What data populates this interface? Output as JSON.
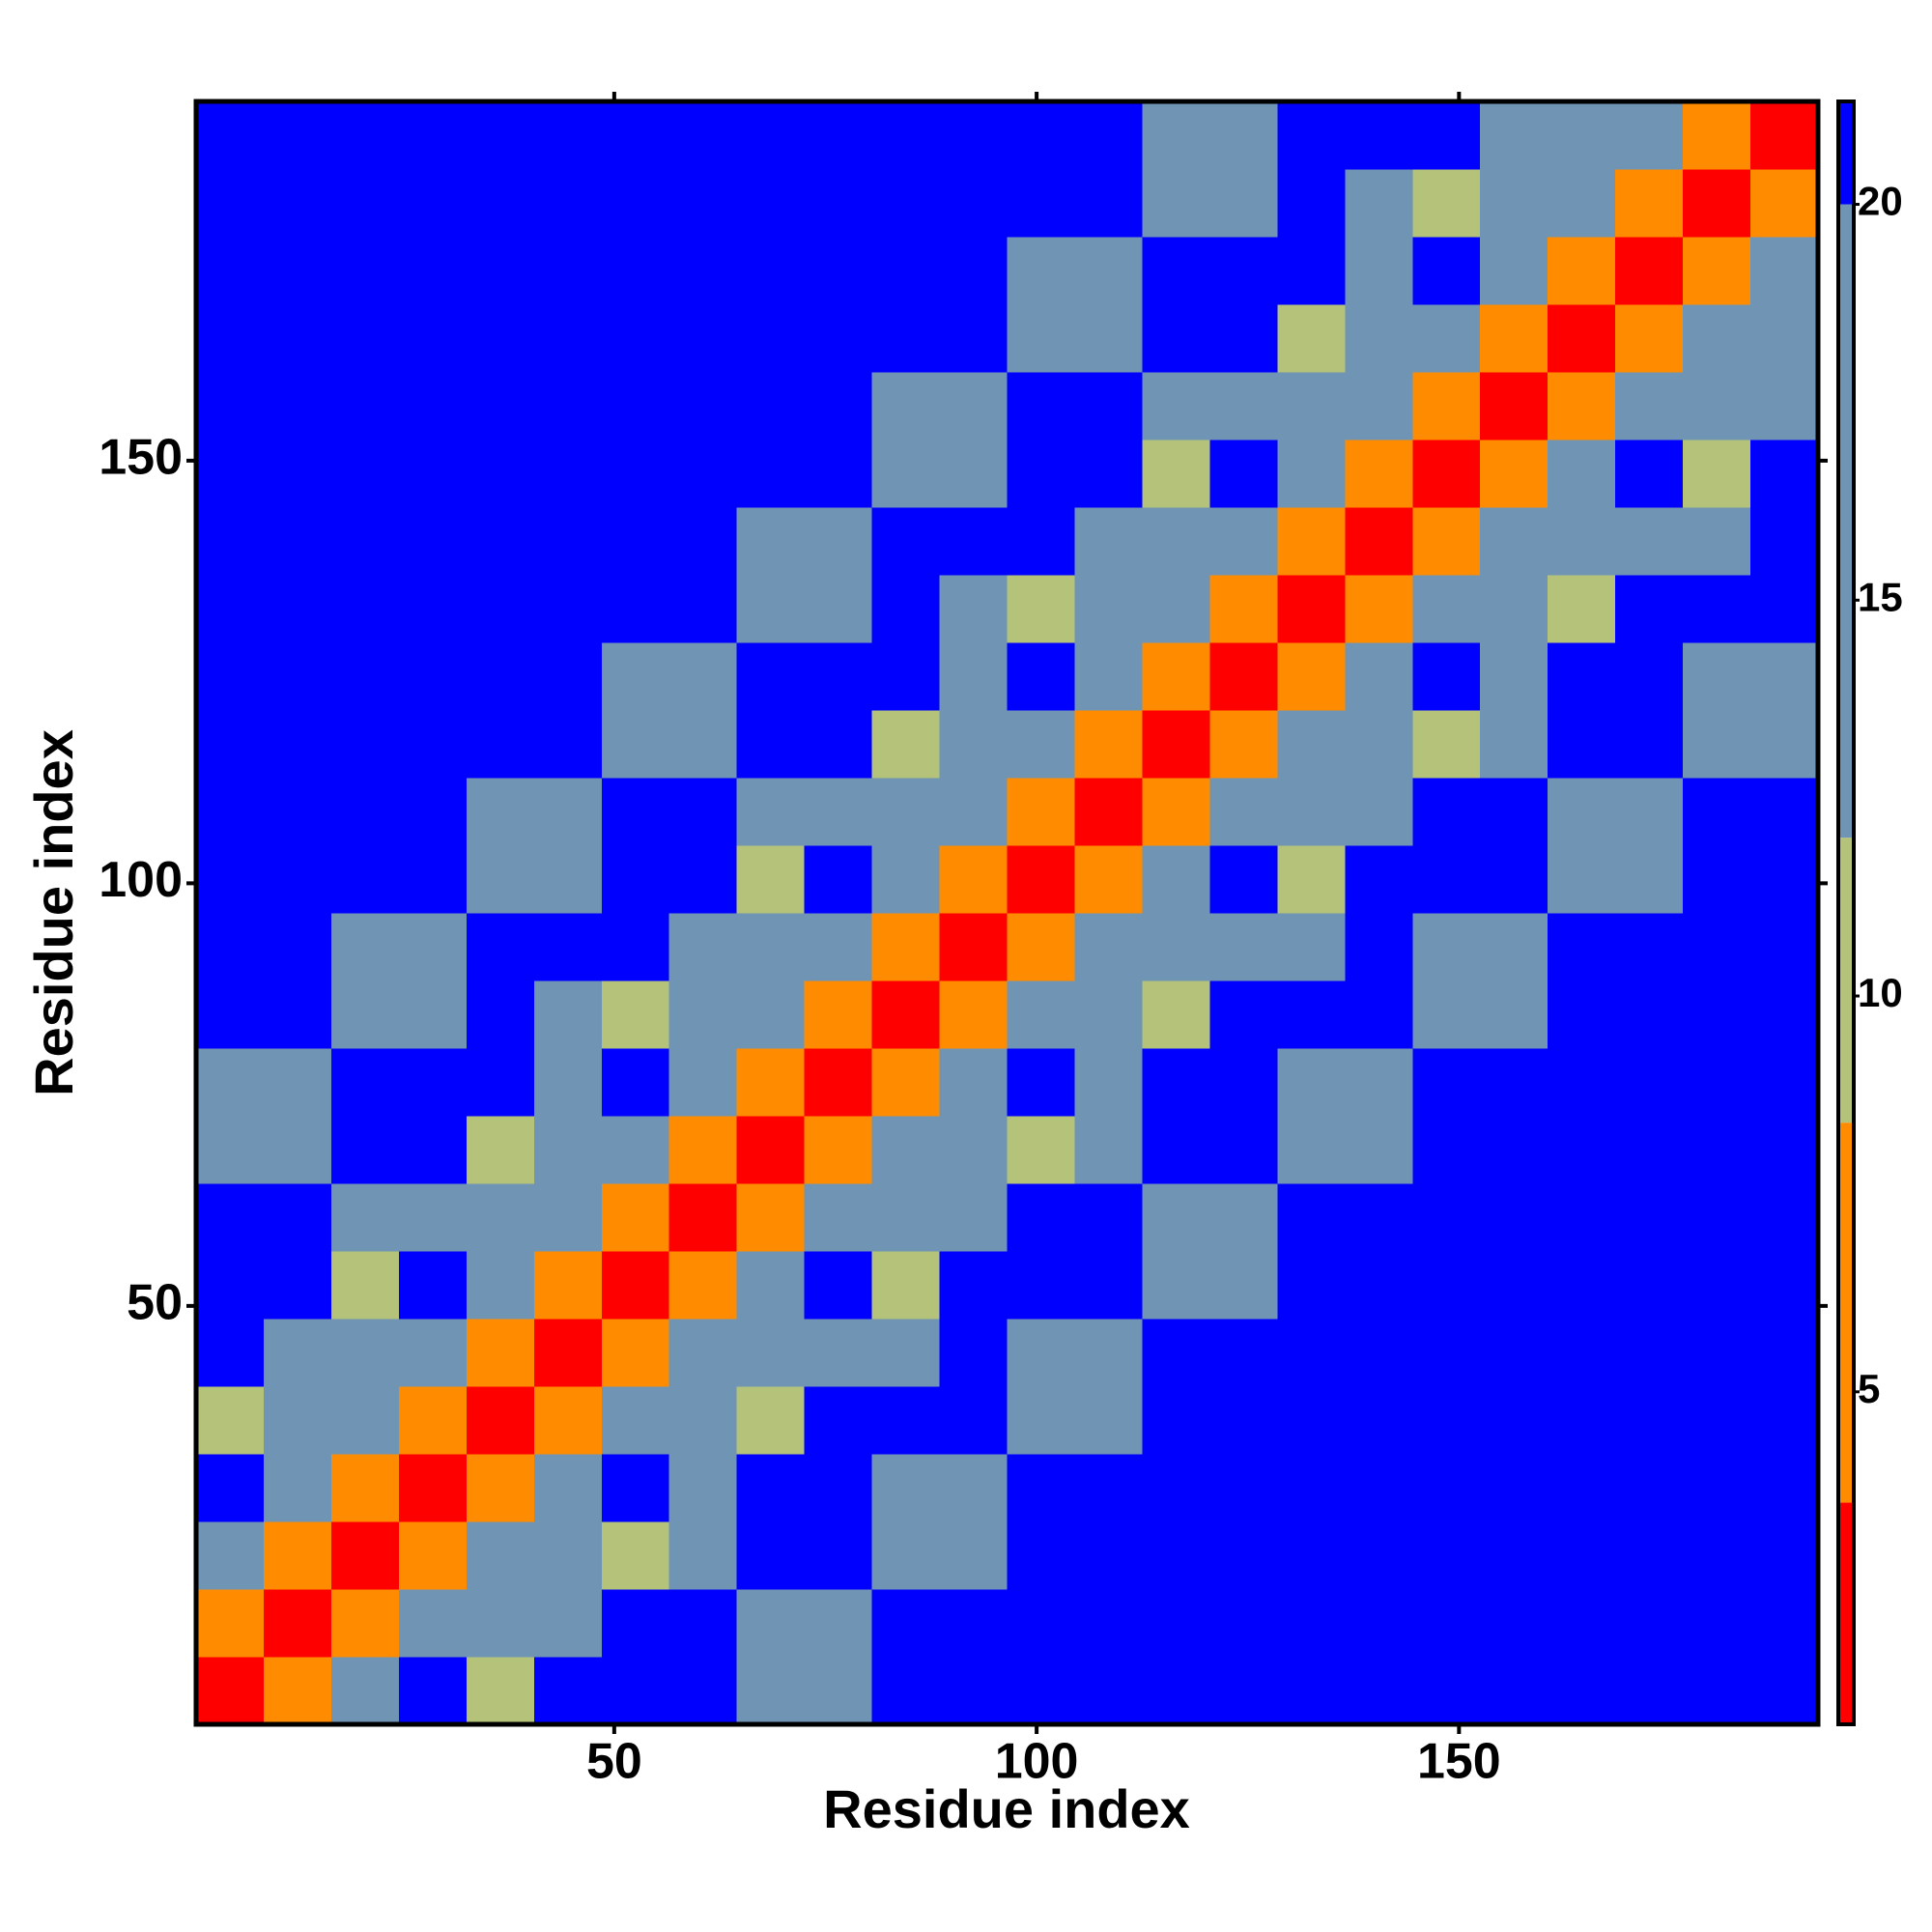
{
  "chart_data": {
    "type": "heatmap",
    "xlabel": "Residue index",
    "ylabel": "Residue index",
    "xlim": [
      0.5,
      192.5
    ],
    "ylim": [
      0.5,
      192.5
    ],
    "xticks": [
      50,
      100,
      150
    ],
    "yticks": [
      50,
      100,
      150
    ],
    "x": [
      4.5,
      12.5,
      20.5,
      28.5,
      36.5,
      44.5,
      52.5,
      60.5,
      68.5,
      76.5,
      84.5,
      92.5,
      100.5,
      108.5,
      116.5,
      124.5,
      132.5,
      140.5,
      148.5,
      156.5,
      164.5,
      172.5,
      180.5,
      188.5
    ],
    "y": [
      4.5,
      12.5,
      20.5,
      28.5,
      36.5,
      44.5,
      52.5,
      60.5,
      68.5,
      76.5,
      84.5,
      92.5,
      100.5,
      108.5,
      116.5,
      124.5,
      132.5,
      140.5,
      148.5,
      156.5,
      164.5,
      172.5,
      180.5,
      188.5
    ],
    "z": [
      [
        2,
        8,
        14,
        20,
        11,
        21,
        21,
        21,
        19,
        18,
        21,
        21,
        21,
        21,
        21,
        21,
        21,
        21,
        21,
        21,
        21,
        21,
        21,
        21
      ],
      [
        8,
        2,
        8,
        14,
        12,
        13,
        21,
        21,
        17,
        15,
        21,
        21,
        21,
        21,
        21,
        21,
        21,
        21,
        21,
        21,
        21,
        21,
        21,
        21
      ],
      [
        14,
        8,
        2,
        8,
        14,
        12,
        11,
        16,
        21,
        21,
        19,
        18,
        21,
        21,
        21,
        21,
        21,
        21,
        21,
        21,
        21,
        21,
        21,
        21
      ],
      [
        20,
        14,
        8,
        2,
        8,
        14,
        20,
        13,
        21,
        21,
        17,
        19,
        21,
        21,
        21,
        21,
        21,
        21,
        21,
        21,
        21,
        21,
        21,
        21
      ],
      [
        11,
        12,
        14,
        8,
        2,
        8,
        14,
        12,
        11,
        21,
        21,
        21,
        15,
        18,
        21,
        21,
        21,
        21,
        21,
        21,
        21,
        21,
        21,
        21
      ],
      [
        21,
        13,
        12,
        14,
        8,
        2,
        8,
        14,
        12,
        13,
        16,
        21,
        17,
        19,
        21,
        21,
        21,
        21,
        21,
        21,
        21,
        21,
        21,
        21
      ],
      [
        21,
        21,
        11,
        20,
        14,
        8,
        2,
        8,
        14,
        20,
        11,
        21,
        21,
        21,
        19,
        18,
        21,
        21,
        21,
        21,
        21,
        21,
        21,
        21
      ],
      [
        21,
        21,
        16,
        13,
        12,
        14,
        8,
        2,
        8,
        14,
        12,
        13,
        21,
        21,
        17,
        15,
        21,
        21,
        21,
        21,
        21,
        21,
        21,
        21
      ],
      [
        19,
        17,
        21,
        21,
        11,
        12,
        14,
        8,
        2,
        8,
        14,
        12,
        11,
        16,
        21,
        21,
        19,
        18,
        21,
        21,
        21,
        21,
        21,
        21
      ],
      [
        18,
        15,
        21,
        21,
        21,
        13,
        20,
        14,
        8,
        2,
        8,
        14,
        20,
        13,
        21,
        21,
        17,
        19,
        21,
        21,
        21,
        21,
        21,
        21
      ],
      [
        21,
        21,
        19,
        17,
        21,
        16,
        11,
        12,
        14,
        8,
        2,
        8,
        14,
        12,
        11,
        21,
        21,
        21,
        15,
        18,
        21,
        21,
        21,
        21
      ],
      [
        21,
        21,
        18,
        19,
        21,
        21,
        21,
        13,
        12,
        14,
        8,
        2,
        8,
        14,
        12,
        13,
        16,
        21,
        17,
        19,
        21,
        21,
        21,
        21
      ],
      [
        21,
        21,
        21,
        21,
        15,
        17,
        21,
        21,
        11,
        20,
        14,
        8,
        2,
        8,
        14,
        20,
        11,
        21,
        21,
        21,
        19,
        18,
        21,
        21
      ],
      [
        21,
        21,
        21,
        21,
        18,
        19,
        21,
        21,
        16,
        13,
        12,
        14,
        8,
        2,
        8,
        14,
        12,
        13,
        21,
        21,
        17,
        15,
        21,
        21
      ],
      [
        21,
        21,
        21,
        21,
        21,
        21,
        19,
        17,
        21,
        21,
        11,
        12,
        14,
        8,
        2,
        8,
        14,
        12,
        11,
        16,
        21,
        21,
        19,
        18
      ],
      [
        21,
        21,
        21,
        21,
        21,
        21,
        18,
        15,
        21,
        21,
        21,
        13,
        20,
        14,
        8,
        2,
        8,
        14,
        20,
        13,
        21,
        21,
        17,
        19
      ],
      [
        21,
        21,
        21,
        21,
        21,
        21,
        21,
        21,
        19,
        17,
        21,
        16,
        11,
        12,
        14,
        8,
        2,
        8,
        14,
        12,
        11,
        21,
        21,
        21
      ],
      [
        21,
        21,
        21,
        21,
        21,
        21,
        21,
        21,
        18,
        19,
        21,
        21,
        21,
        13,
        12,
        14,
        8,
        2,
        8,
        14,
        12,
        13,
        16,
        21
      ],
      [
        21,
        21,
        21,
        21,
        21,
        21,
        21,
        21,
        21,
        21,
        15,
        17,
        21,
        21,
        11,
        20,
        14,
        8,
        2,
        8,
        14,
        20,
        11,
        21
      ],
      [
        21,
        21,
        21,
        21,
        21,
        21,
        21,
        21,
        21,
        21,
        18,
        19,
        21,
        21,
        16,
        13,
        12,
        14,
        8,
        2,
        8,
        14,
        12,
        13
      ],
      [
        21,
        21,
        21,
        21,
        21,
        21,
        21,
        21,
        21,
        21,
        21,
        21,
        19,
        17,
        21,
        21,
        11,
        12,
        14,
        8,
        2,
        8,
        14,
        12
      ],
      [
        21,
        21,
        21,
        21,
        21,
        21,
        21,
        21,
        21,
        21,
        21,
        21,
        18,
        15,
        21,
        21,
        21,
        13,
        20,
        14,
        8,
        2,
        8,
        14
      ],
      [
        21,
        21,
        21,
        21,
        21,
        21,
        21,
        21,
        21,
        21,
        21,
        21,
        21,
        21,
        19,
        17,
        21,
        16,
        11,
        12,
        14,
        8,
        2,
        8
      ],
      [
        21,
        21,
        21,
        21,
        21,
        21,
        21,
        21,
        21,
        21,
        21,
        21,
        21,
        21,
        18,
        19,
        21,
        21,
        21,
        13,
        12,
        14,
        8,
        2
      ]
    ],
    "clim": [
      0.8,
      21.3
    ],
    "cticks": [
      5,
      10,
      15,
      20
    ],
    "colorscale": [
      {
        "value": 0.8,
        "color": "#ff0000"
      },
      {
        "value": 3.6,
        "color": "#ff8c00"
      },
      {
        "value": 8.4,
        "color": "#b5c27a"
      },
      {
        "value": 12,
        "color": "#6f94b4"
      },
      {
        "value": 20,
        "color": "#0000ff"
      }
    ]
  }
}
